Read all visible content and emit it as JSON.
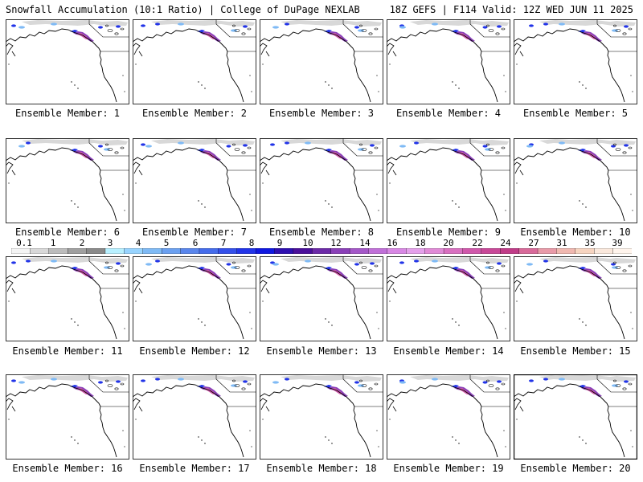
{
  "header": {
    "left_title": "Snowfall Accumulation (10:1 Ratio) | College of DuPage NEXLAB",
    "right_title": "18Z GEFS | F114 Valid: 12Z WED JUN 11 2025"
  },
  "panels": [
    {
      "caption": "Ensemble Member: 1"
    },
    {
      "caption": "Ensemble Member: 2"
    },
    {
      "caption": "Ensemble Member: 3"
    },
    {
      "caption": "Ensemble Member: 4"
    },
    {
      "caption": "Ensemble Member: 5"
    },
    {
      "caption": "Ensemble Member: 6"
    },
    {
      "caption": "Ensemble Member: 7"
    },
    {
      "caption": "Ensemble Member: 8"
    },
    {
      "caption": "Ensemble Member: 9"
    },
    {
      "caption": "Ensemble Member: 10"
    },
    {
      "caption": "Ensemble Member: 11"
    },
    {
      "caption": "Ensemble Member: 12"
    },
    {
      "caption": "Ensemble Member: 13"
    },
    {
      "caption": "Ensemble Member: 14"
    },
    {
      "caption": "Ensemble Member: 15"
    },
    {
      "caption": "Ensemble Member: 16"
    },
    {
      "caption": "Ensemble Member: 17"
    },
    {
      "caption": "Ensemble Member: 18"
    },
    {
      "caption": "Ensemble Member: 19"
    },
    {
      "caption": "Ensemble Member: 20"
    }
  ],
  "colorbar": {
    "labels": [
      "0.1",
      "1",
      "2",
      "3",
      "4",
      "5",
      "6",
      "7",
      "8",
      "9",
      "10",
      "12",
      "14",
      "16",
      "18",
      "20",
      "22",
      "24",
      "27",
      "31",
      "35",
      "39"
    ],
    "colors": [
      "#f4f4f4",
      "#d8d8d8",
      "#bcbcbc",
      "#a0a0a0",
      "#8a8a8a",
      "#b8f0ff",
      "#98d4ff",
      "#7fbaf5",
      "#6ba0f0",
      "#5a86ec",
      "#456ceb",
      "#3450ea",
      "#2234e8",
      "#1018e0",
      "#2e0fb0",
      "#4a0f9a",
      "#6c2aa8",
      "#8a40b8",
      "#a458c8",
      "#c070d8",
      "#d888e4",
      "#e4a0ea",
      "#e08ad6",
      "#d870c0",
      "#d058ab",
      "#c84898",
      "#c03c88",
      "#d86a9a",
      "#e89aa8",
      "#f0b8b0",
      "#f6d4c0",
      "#fae8dc",
      "#fff4ec"
    ]
  },
  "map_colors": {
    "light_snow": "#d8d8d8",
    "moderate_snow": "#7fbaf5",
    "heavy_snow": "#2234e8",
    "very_heavy_snow": "#8a40b8",
    "extreme_snow": "#d058ab"
  }
}
